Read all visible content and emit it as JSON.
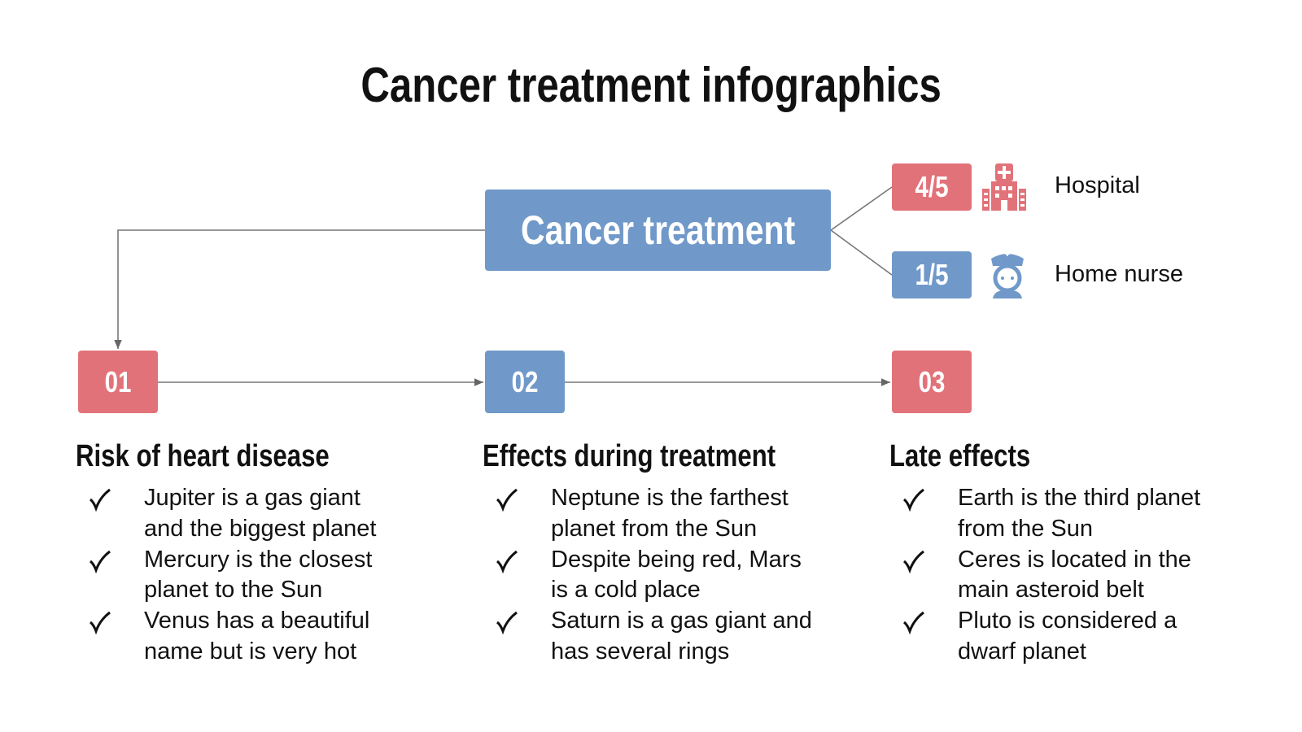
{
  "header": {
    "title": "Cancer treatment infographics"
  },
  "center": {
    "label": "Cancer treatment"
  },
  "options": [
    {
      "value": "4/5",
      "label": "Hospital"
    },
    {
      "value": "1/5",
      "label": "Home nurse"
    }
  ],
  "steps": [
    {
      "number": "01",
      "title": "Risk of heart disease",
      "items": [
        [
          "Jupiter is a gas giant",
          "and the biggest planet"
        ],
        [
          "Mercury is the closest",
          "planet to the Sun"
        ],
        [
          "Venus has a beautiful",
          "name but is very hot"
        ]
      ]
    },
    {
      "number": "02",
      "title": "Effects during treatment",
      "items": [
        [
          "Neptune is the farthest",
          "planet from the Sun"
        ],
        [
          "Despite being red, Mars",
          "is a cold place"
        ],
        [
          "Saturn is a gas giant and",
          "has several rings"
        ]
      ]
    },
    {
      "number": "03",
      "title": "Late effects",
      "items": [
        [
          "Earth is the third planet",
          "from the Sun"
        ],
        [
          "Ceres is located in the",
          "main asteroid belt"
        ],
        [
          "Pluto is considered a",
          "dwarf planet"
        ]
      ]
    }
  ]
}
